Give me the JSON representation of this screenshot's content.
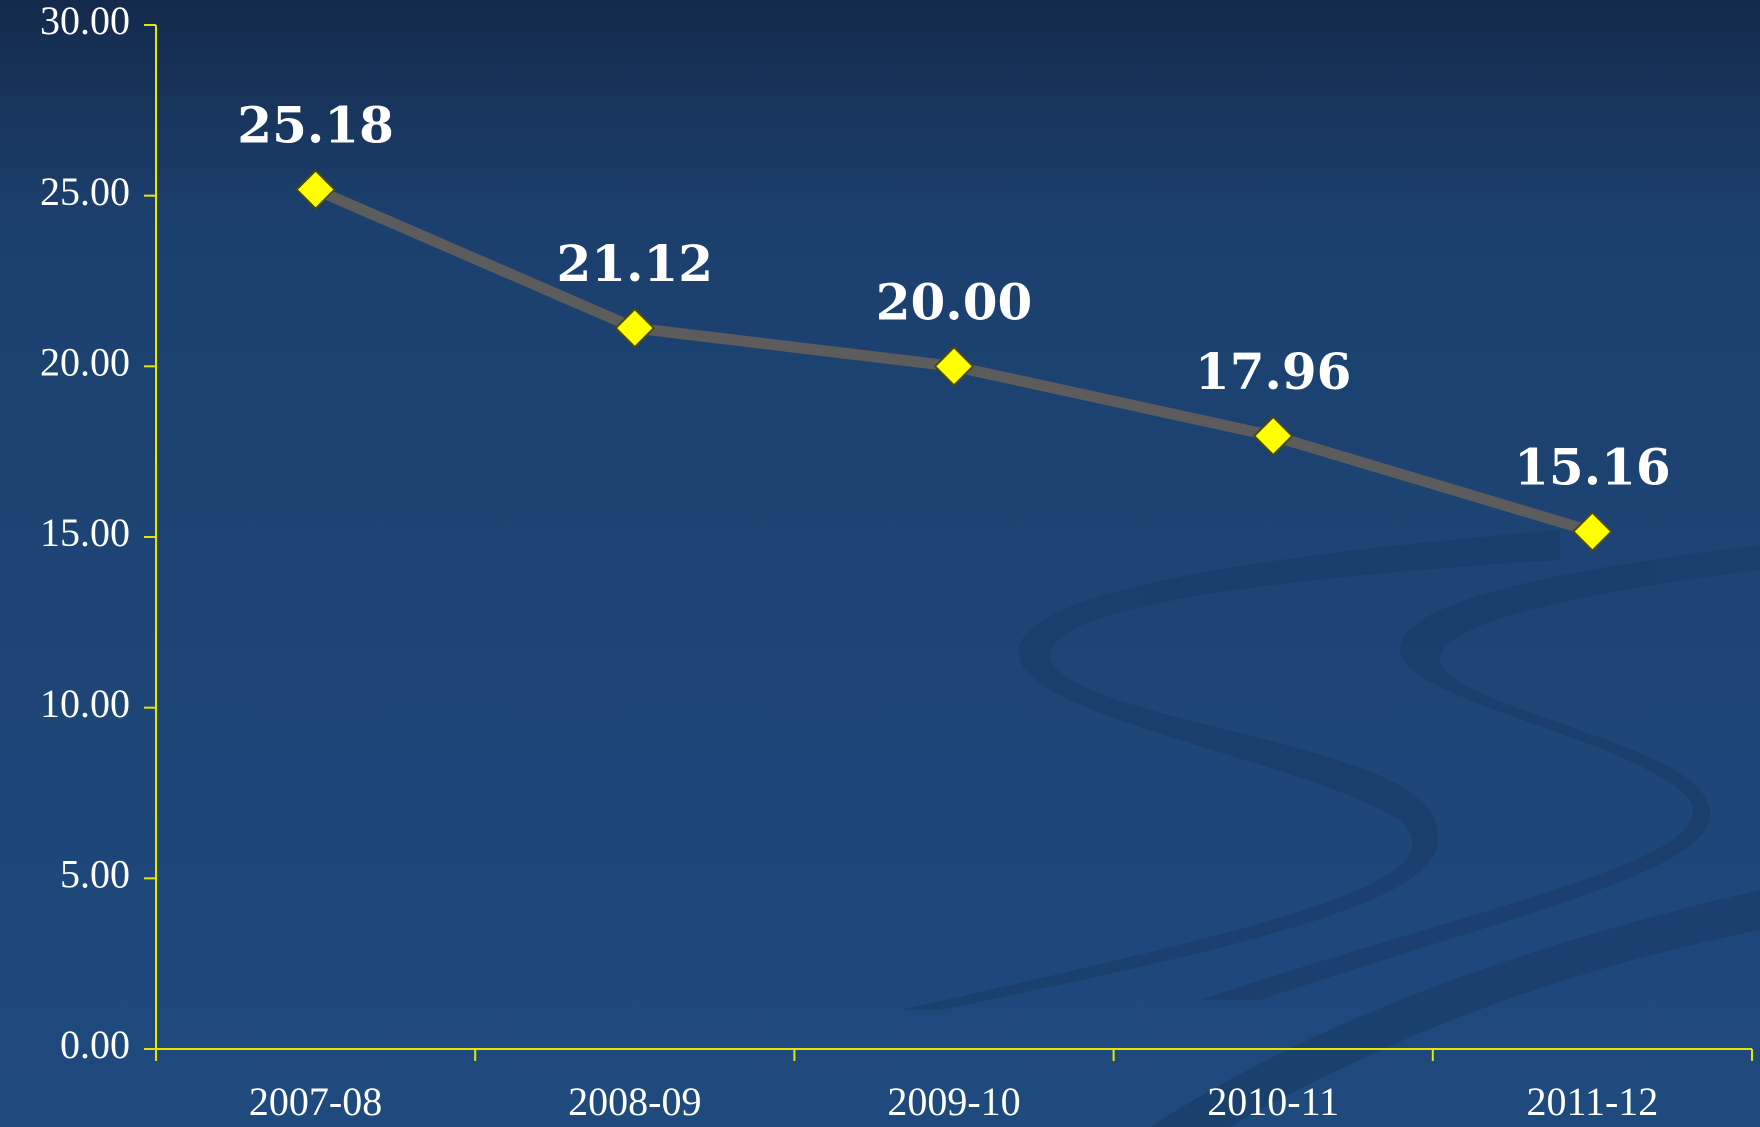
{
  "chart_data": {
    "type": "line",
    "categories": [
      "2007-08",
      "2008-09",
      "2009-10",
      "2010-11",
      "2011-12"
    ],
    "series": [
      {
        "color": "#5c5c5c",
        "marker_color": "#ffff00",
        "values": [
          25.18,
          21.12,
          20.0,
          17.96,
          15.16
        ],
        "value_labels": [
          "25.18",
          "21.12",
          "20.00",
          "17.96",
          "15.16"
        ]
      }
    ],
    "ylim": [
      0,
      30
    ],
    "yticks": [
      {
        "value": 0,
        "label": "0.00"
      },
      {
        "value": 5,
        "label": "5.00"
      },
      {
        "value": 10,
        "label": "10.00"
      },
      {
        "value": 15,
        "label": "15.00"
      },
      {
        "value": 20,
        "label": "20.00"
      },
      {
        "value": 25,
        "label": "25.00"
      },
      {
        "value": 30,
        "label": "30.00"
      }
    ],
    "axis_color": "#e6e600",
    "grid": false
  }
}
